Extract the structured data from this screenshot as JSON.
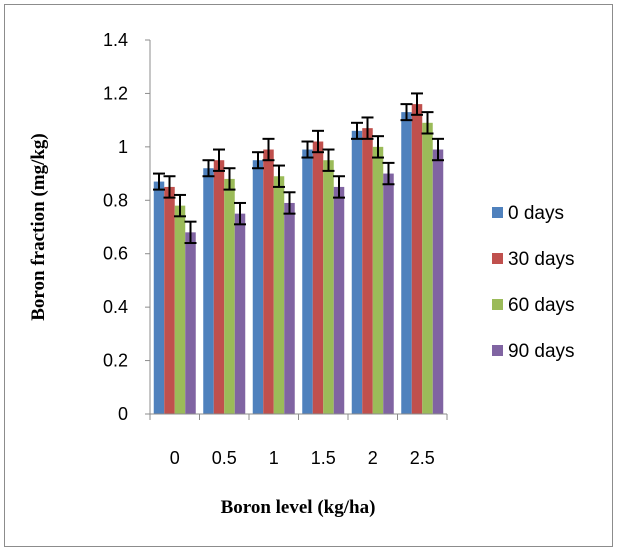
{
  "chart_data": {
    "type": "bar",
    "title": "",
    "xlabel": "Boron level (kg/ha)",
    "ylabel": "Boron fraction (mg/kg)",
    "categories": [
      "0",
      "0.5",
      "1",
      "1.5",
      "2",
      "2.5"
    ],
    "ylim": [
      0,
      1.4
    ],
    "yticks": [
      "0",
      "0.2",
      "0.4",
      "0.6",
      "0.8",
      "1",
      "1.2",
      "1.4"
    ],
    "ytick_values": [
      0,
      0.2,
      0.4,
      0.6,
      0.8,
      1.0,
      1.2,
      1.4
    ],
    "grid": false,
    "legend_position": "right",
    "error_bars": true,
    "series": [
      {
        "name": "0 days",
        "color": "#4f81bd",
        "values": [
          0.87,
          0.92,
          0.95,
          0.99,
          1.06,
          1.13
        ],
        "errors": [
          0.03,
          0.03,
          0.03,
          0.03,
          0.03,
          0.03
        ]
      },
      {
        "name": "30 days",
        "color": "#c0504d",
        "values": [
          0.85,
          0.95,
          0.99,
          1.02,
          1.07,
          1.16
        ],
        "errors": [
          0.04,
          0.04,
          0.04,
          0.04,
          0.04,
          0.04
        ]
      },
      {
        "name": "60 days",
        "color": "#9bbb59",
        "values": [
          0.78,
          0.88,
          0.89,
          0.95,
          1.0,
          1.09
        ],
        "errors": [
          0.04,
          0.04,
          0.04,
          0.04,
          0.04,
          0.04
        ]
      },
      {
        "name": "90 days",
        "color": "#8064a2",
        "values": [
          0.68,
          0.75,
          0.79,
          0.85,
          0.9,
          0.99
        ],
        "errors": [
          0.04,
          0.04,
          0.04,
          0.04,
          0.04,
          0.04
        ]
      }
    ]
  }
}
